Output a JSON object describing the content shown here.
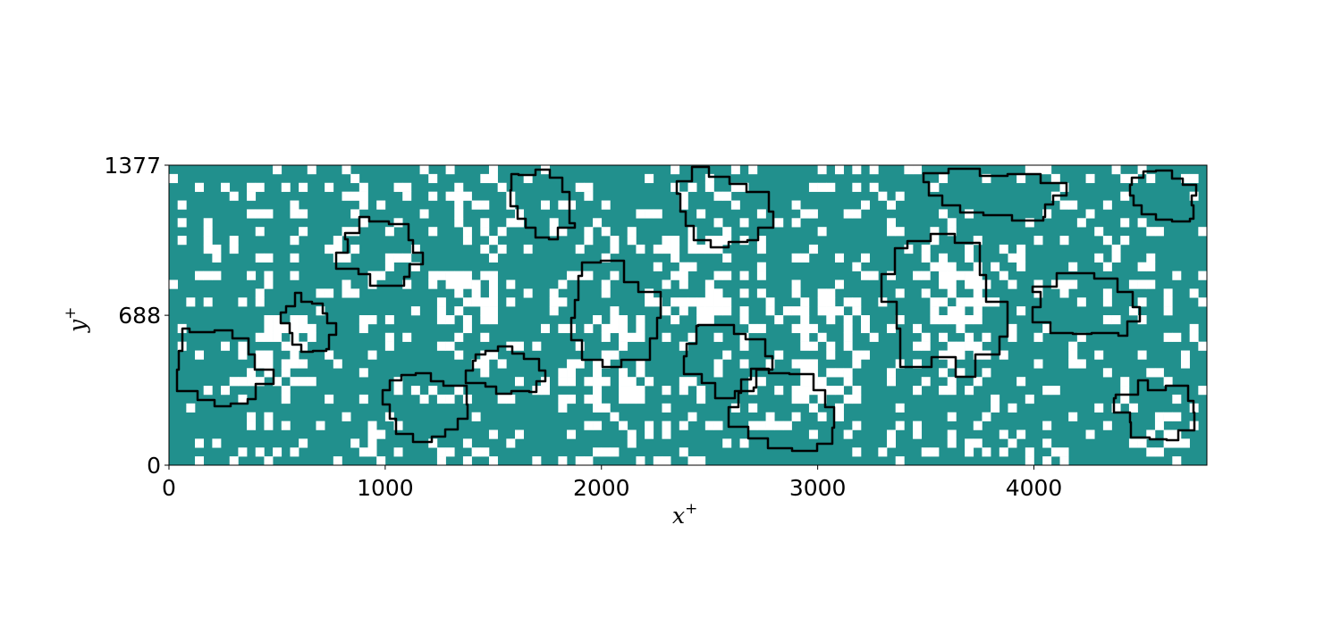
{
  "chart_data": {
    "type": "heatmap",
    "title": "",
    "xlabel": "x",
    "xlabel_sup": "+",
    "ylabel": "y",
    "ylabel_sup": "+",
    "xlim": [
      0,
      4800
    ],
    "ylim": [
      0,
      1377
    ],
    "x_ticks": [
      0,
      1000,
      2000,
      3000,
      4000
    ],
    "y_ticks": [
      0,
      688,
      1377
    ],
    "grid": false,
    "legend": "none",
    "cell_grid": {
      "nx": 120,
      "ny": 34
    },
    "colors": {
      "filled_cell": "#21908d",
      "empty_cell": "#ffffff",
      "contour": "#000000",
      "axes": "#000000"
    },
    "white_regions_approx": [
      {
        "x": [
          330,
          650
        ],
        "y": [
          380,
          700
        ]
      },
      {
        "x": [
          1250,
          1500
        ],
        "y": [
          650,
          900
        ]
      },
      {
        "x": [
          1980,
          2200
        ],
        "y": [
          300,
          700
        ]
      },
      {
        "x": [
          2280,
          2600
        ],
        "y": [
          700,
          1050
        ]
      },
      {
        "x": [
          2900,
          3200
        ],
        "y": [
          200,
          800
        ]
      },
      {
        "x": [
          3500,
          3800
        ],
        "y": [
          500,
          1000
        ]
      }
    ],
    "contour_regions_approx": [
      {
        "x": [
          0,
          500
        ],
        "y": [
          200,
          680
        ]
      },
      {
        "x": [
          500,
          780
        ],
        "y": [
          500,
          800
        ]
      },
      {
        "x": [
          950,
          1400
        ],
        "y": [
          80,
          480
        ]
      },
      {
        "x": [
          1350,
          1750
        ],
        "y": [
          300,
          570
        ]
      },
      {
        "x": [
          1800,
          2300
        ],
        "y": [
          400,
          950
        ]
      },
      {
        "x": [
          2350,
          2800
        ],
        "y": [
          300,
          700
        ]
      },
      {
        "x": [
          2550,
          3100
        ],
        "y": [
          50,
          480
        ]
      },
      {
        "x": [
          3250,
          3900
        ],
        "y": [
          350,
          1150
        ]
      },
      {
        "x": [
          3950,
          4500
        ],
        "y": [
          550,
          900
        ]
      },
      {
        "x": [
          4350,
          4800
        ],
        "y": [
          80,
          400
        ]
      },
      {
        "x": [
          750,
          1200
        ],
        "y": [
          800,
          1150
        ]
      },
      {
        "x": [
          1550,
          1900
        ],
        "y": [
          1000,
          1377
        ]
      },
      {
        "x": [
          2300,
          2800
        ],
        "y": [
          950,
          1377
        ]
      },
      {
        "x": [
          3450,
          4200
        ],
        "y": [
          1100,
          1377
        ]
      },
      {
        "x": [
          4400,
          4800
        ],
        "y": [
          1100,
          1377
        ]
      }
    ]
  }
}
